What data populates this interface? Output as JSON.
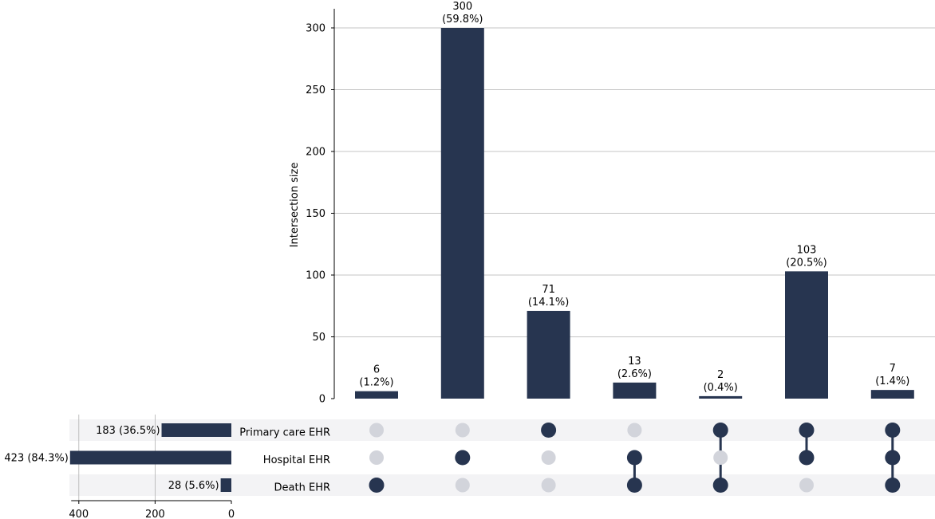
{
  "chart_data": {
    "type": "bar",
    "subtype": "upset",
    "title": "",
    "ylabel": "Intersection size",
    "ylim": [
      0,
      315
    ],
    "yticks": [
      0,
      50,
      100,
      150,
      200,
      250,
      300
    ],
    "grid": true,
    "sets": [
      "Primary care EHR",
      "Hospital EHR",
      "Death EHR"
    ],
    "set_sizes": [
      183,
      423,
      28
    ],
    "set_size_labels": [
      "183 (36.5%)",
      "423 (84.3%)",
      "28 (5.6%)"
    ],
    "set_size_xlim": [
      0,
      420
    ],
    "set_size_ticks": [
      400,
      200,
      0
    ],
    "intersections": [
      {
        "members": [
          false,
          false,
          true
        ],
        "value": 6,
        "label_count": "6",
        "label_pct": "(1.2%)"
      },
      {
        "members": [
          false,
          true,
          false
        ],
        "value": 300,
        "label_count": "300",
        "label_pct": "(59.8%)"
      },
      {
        "members": [
          true,
          false,
          false
        ],
        "value": 71,
        "label_count": "71",
        "label_pct": "(14.1%)"
      },
      {
        "members": [
          false,
          true,
          true
        ],
        "value": 13,
        "label_count": "13",
        "label_pct": "(2.6%)"
      },
      {
        "members": [
          true,
          false,
          true
        ],
        "value": 2,
        "label_count": "2",
        "label_pct": "(0.4%)"
      },
      {
        "members": [
          true,
          true,
          false
        ],
        "value": 103,
        "label_count": "103",
        "label_pct": "(20.5%)"
      },
      {
        "members": [
          true,
          true,
          true
        ],
        "value": 7,
        "label_count": "7",
        "label_pct": "(1.4%)"
      }
    ]
  },
  "colors": {
    "bar": "#273550",
    "dot_active": "#273550",
    "dot_inactive": "#d2d4db",
    "stripe": "#f3f3f5",
    "grid": "#b0b0b0"
  }
}
